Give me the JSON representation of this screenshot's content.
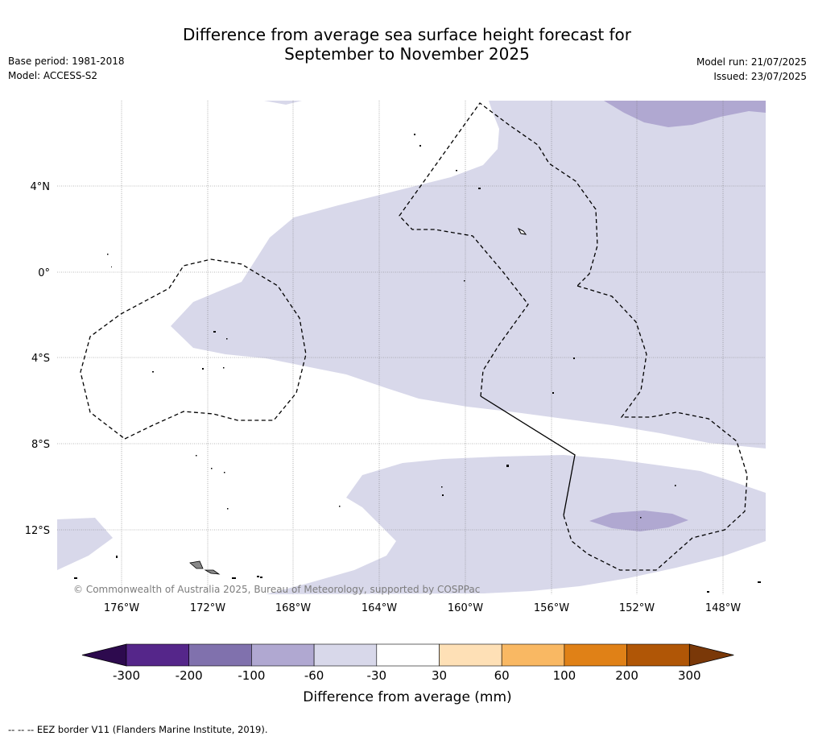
{
  "title": {
    "line1": "Difference from average sea surface height forecast for",
    "line2": "September to November 2025"
  },
  "meta_left": {
    "base_period": "Base period: 1981-2018",
    "model": "Model: ACCESS-S2"
  },
  "meta_right": {
    "model_run": "Model run: 21/07/2025",
    "issued": "Issued: 23/07/2025"
  },
  "map": {
    "lat_labels": [
      "4°N",
      "0°",
      "4°S",
      "8°S",
      "12°S"
    ],
    "lon_labels": [
      "176°W",
      "172°W",
      "168°W",
      "164°W",
      "160°W",
      "156°W",
      "152°W",
      "148°W"
    ],
    "copyright": "© Commonwealth of Australia 2025, Bureau of Meteorology, supported by COSPPac"
  },
  "colorbar": {
    "tick_labels": [
      "-300",
      "-200",
      "-100",
      "-60",
      "-30",
      "30",
      "60",
      "100",
      "200",
      "300"
    ],
    "colors": [
      "#2d0a4e",
      "#55268a",
      "#8071ad",
      "#b0a8d1",
      "#d8d8ea",
      "#ffffff",
      "#fee0b6",
      "#f9b863",
      "#e08117",
      "#b05606",
      "#7a3808"
    ],
    "label": "Difference from average (mm)"
  },
  "footer": "--  --  -- EEZ border V11 (Flanders Marine Institute, 2019)."
}
